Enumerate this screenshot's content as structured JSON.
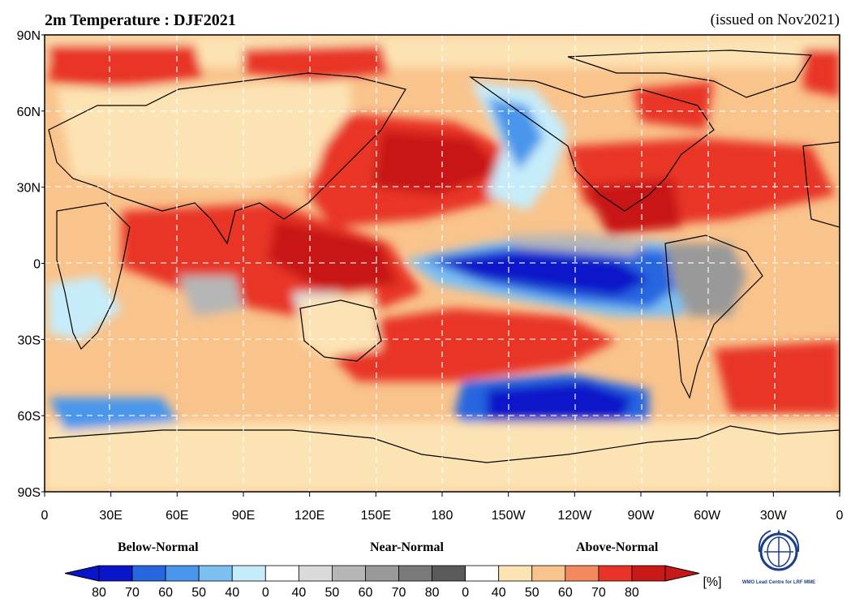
{
  "header": {
    "title": "2m Temperature : DJF2021",
    "issued": "(issued on Nov2021)"
  },
  "map": {
    "lat_labels": [
      "90N",
      "60N",
      "30N",
      "0",
      "30S",
      "60S",
      "90S"
    ],
    "lon_labels": [
      "0",
      "30E",
      "60E",
      "90E",
      "120E",
      "150E",
      "180",
      "150W",
      "120W",
      "90W",
      "60W",
      "30W",
      "0"
    ]
  },
  "legend": {
    "categories": {
      "below": "Below-Normal",
      "near": "Near-Normal",
      "above": "Above-Normal"
    },
    "tick_labels": [
      "80",
      "70",
      "60",
      "50",
      "40",
      "0",
      "40",
      "50",
      "60",
      "70",
      "80",
      "0",
      "40",
      "50",
      "60",
      "70",
      "80"
    ],
    "unit": "[%]",
    "colors": {
      "below": [
        "#0a14c8",
        "#2866e0",
        "#4a96ec",
        "#7cc0f2",
        "#c6ecfa"
      ],
      "near": [
        "#ffffff",
        "#dadada",
        "#b6b6b6",
        "#999999",
        "#7a7a7a",
        "#5a5a5a"
      ],
      "above": [
        "#ffffff",
        "#fce3b4",
        "#f9c38c",
        "#f38a5e",
        "#e83428",
        "#c81818"
      ]
    }
  },
  "logo": {
    "text": "WMO Lead Centre for LRF MME"
  }
}
